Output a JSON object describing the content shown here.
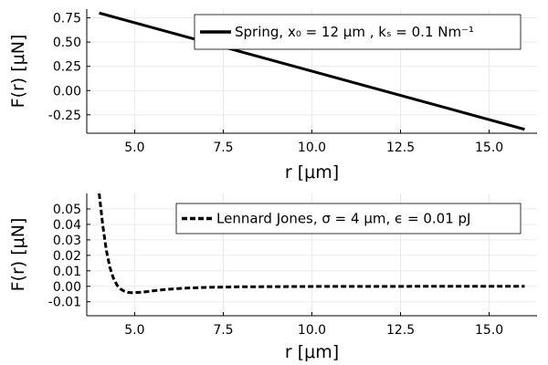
{
  "chart_data": [
    {
      "type": "line",
      "xlabel": "r [μm]",
      "ylabel": "F(r) [μN]",
      "xlim": [
        3.65,
        16.35
      ],
      "ylim": [
        -0.44,
        0.84
      ],
      "xticks": [
        5.0,
        7.5,
        10.0,
        12.5,
        15.0
      ],
      "xtick_labels": [
        "5.0",
        "7.5",
        "10.0",
        "12.5",
        "15.0"
      ],
      "yticks": [
        0.75,
        0.5,
        0.25,
        0.0,
        -0.25
      ],
      "ytick_labels": [
        "0.75",
        "0.50",
        "0.25",
        "0.00",
        "-0.25"
      ],
      "grid": true,
      "legend_position": "top-right",
      "series": [
        {
          "name": "Spring, x₀ = 12 μm , kₛ = 0.1 Nm⁻¹",
          "line_style": "solid",
          "color": "#000000",
          "x": [
            4,
            16
          ],
          "y": [
            0.8,
            -0.4
          ]
        }
      ]
    },
    {
      "type": "line",
      "xlabel": "r [μm]",
      "ylabel": "F(r) [μN]",
      "xlim": [
        3.65,
        16.35
      ],
      "ylim": [
        -0.019,
        0.06
      ],
      "xticks": [
        5.0,
        7.5,
        10.0,
        12.5,
        15.0
      ],
      "xtick_labels": [
        "5.0",
        "7.5",
        "10.0",
        "12.5",
        "15.0"
      ],
      "yticks": [
        0.05,
        0.04,
        0.03,
        0.02,
        0.01,
        0.0,
        -0.01
      ],
      "ytick_labels": [
        "0.05",
        "0.04",
        "0.03",
        "0.02",
        "0.01",
        "0.00",
        "-0.01"
      ],
      "grid": true,
      "legend_position": "top-right",
      "series": [
        {
          "name": "Lennard Jones, σ = 4 μm, ϵ = 0.01 pJ",
          "line_style": "dashed",
          "color": "#000000",
          "x": [
            4.0,
            4.1,
            4.2,
            4.3,
            4.4,
            4.5,
            4.6,
            4.7,
            4.8,
            4.9,
            5.0,
            5.2,
            5.4,
            5.6,
            5.8,
            6.0,
            6.5,
            7.0,
            7.5,
            8.0,
            9.0,
            10.0,
            11.0,
            12.0,
            13.0,
            14.0,
            15.0,
            16.0
          ],
          "y": [
            0.06,
            0.0397,
            0.0235,
            0.0124,
            0.0053,
            0.0009,
            -0.0017,
            -0.0031,
            -0.0038,
            -0.0041,
            -0.0041,
            -0.0038,
            -0.0033,
            -0.0027,
            -0.0022,
            -0.0018,
            -0.0011,
            -0.0007,
            -0.0005,
            -0.0003,
            -0.0002,
            -0.0001,
            -5e-05,
            -3e-05,
            -2e-05,
            -1e-05,
            -1e-05,
            -5e-06
          ]
        }
      ]
    }
  ]
}
